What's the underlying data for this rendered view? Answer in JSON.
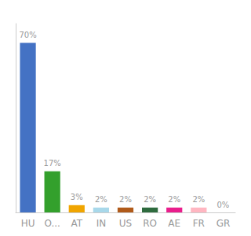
{
  "chart_data": {
    "type": "bar",
    "categories": [
      "HU",
      "O...",
      "AT",
      "IN",
      "US",
      "RO",
      "AE",
      "FR",
      "GR"
    ],
    "values": [
      70,
      17,
      3,
      2,
      2,
      2,
      2,
      2,
      0
    ],
    "value_labels": [
      "70%",
      "17%",
      "3%",
      "2%",
      "2%",
      "2%",
      "2%",
      "2%",
      "0%"
    ],
    "colors": [
      "#4472c4",
      "#33a02c",
      "#f0a500",
      "#a8d8ea",
      "#b05a1a",
      "#2e6b3e",
      "#e91e8c",
      "#ffb6c1",
      "#cccccc"
    ],
    "ylim": [
      0,
      78
    ],
    "data_labels": true,
    "tick_labels": "x",
    "grid": false
  }
}
